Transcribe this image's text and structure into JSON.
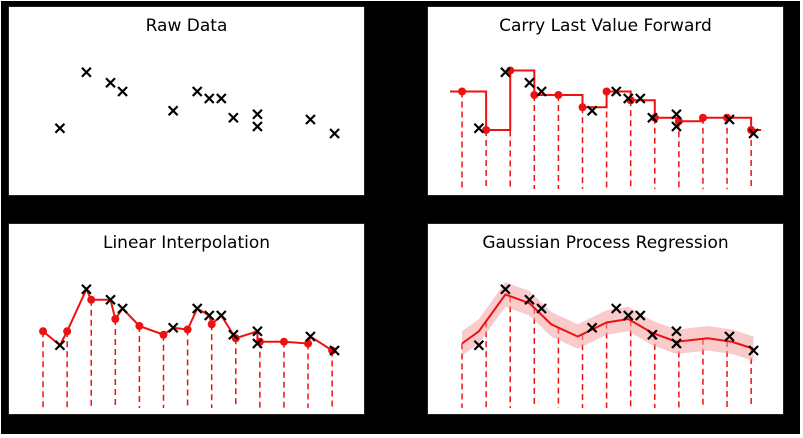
{
  "colors": {
    "marker": "#000000",
    "imputed": "#ee1111",
    "band": "#f4a0a0",
    "background": "#000000",
    "panel": "#ffffff"
  },
  "chart_data": [
    {
      "title": "Raw Data",
      "type": "scatter",
      "xlim": [
        0,
        20
      ],
      "ylim": [
        0,
        10
      ],
      "observations": [
        {
          "x": 1.2,
          "y": 4.5
        },
        {
          "x": 2.3,
          "y": 7.7
        },
        {
          "x": 3.3,
          "y": 7.1
        },
        {
          "x": 3.8,
          "y": 6.6
        },
        {
          "x": 5.9,
          "y": 5.5
        },
        {
          "x": 6.9,
          "y": 6.6
        },
        {
          "x": 7.4,
          "y": 6.2
        },
        {
          "x": 7.9,
          "y": 6.2
        },
        {
          "x": 8.4,
          "y": 5.1
        },
        {
          "x": 9.4,
          "y": 5.3
        },
        {
          "x": 9.4,
          "y": 4.6
        },
        {
          "x": 11.6,
          "y": 5.0
        },
        {
          "x": 12.6,
          "y": 4.2
        }
      ]
    },
    {
      "title": "Carry Last Value Forward",
      "type": "line",
      "xlim": [
        0,
        20
      ],
      "ylim": [
        0,
        10
      ],
      "grid_x": [
        0.5,
        1.5,
        2.5,
        3.5,
        4.5,
        5.5,
        6.5,
        7.5,
        8.5,
        9.5,
        10.5,
        11.5,
        12.5
      ],
      "imputed_y": [
        6.6,
        4.4,
        7.8,
        6.4,
        6.4,
        5.7,
        6.6,
        6.1,
        5.1,
        4.9,
        5.1,
        5.1,
        4.4
      ]
    },
    {
      "title": "Linear Interpolation",
      "type": "line",
      "xlim": [
        0,
        20
      ],
      "ylim": [
        0,
        10
      ],
      "grid_x": [
        0.5,
        1.5,
        2.5,
        3.5,
        4.5,
        5.5,
        6.5,
        7.5,
        8.5,
        9.5,
        10.5,
        11.5,
        12.5
      ],
      "imputed_y": [
        5.3,
        5.3,
        7.1,
        6.0,
        5.6,
        5.1,
        5.4,
        5.7,
        4.9,
        4.7,
        4.7,
        4.6,
        4.2
      ]
    },
    {
      "title": "Gaussian Process Regression",
      "type": "area",
      "xlim": [
        0,
        20
      ],
      "ylim": [
        0,
        10
      ],
      "grid_x": [
        0.5,
        1.5,
        2.5,
        3.5,
        4.5,
        5.5,
        6.5,
        7.5,
        8.5,
        9.5,
        10.5,
        11.5,
        12.5
      ],
      "mean_curve": [
        {
          "x": 0.5,
          "y": 4.6
        },
        {
          "x": 1.2,
          "y": 5.3
        },
        {
          "x": 2.3,
          "y": 7.4
        },
        {
          "x": 3.3,
          "y": 6.9
        },
        {
          "x": 4.2,
          "y": 5.7
        },
        {
          "x": 5.3,
          "y": 5.0
        },
        {
          "x": 6.5,
          "y": 5.8
        },
        {
          "x": 7.4,
          "y": 6.0
        },
        {
          "x": 8.4,
          "y": 5.2
        },
        {
          "x": 9.4,
          "y": 4.7
        },
        {
          "x": 10.7,
          "y": 4.9
        },
        {
          "x": 11.7,
          "y": 4.7
        },
        {
          "x": 12.6,
          "y": 4.3
        }
      ],
      "band_width": 0.7
    }
  ]
}
